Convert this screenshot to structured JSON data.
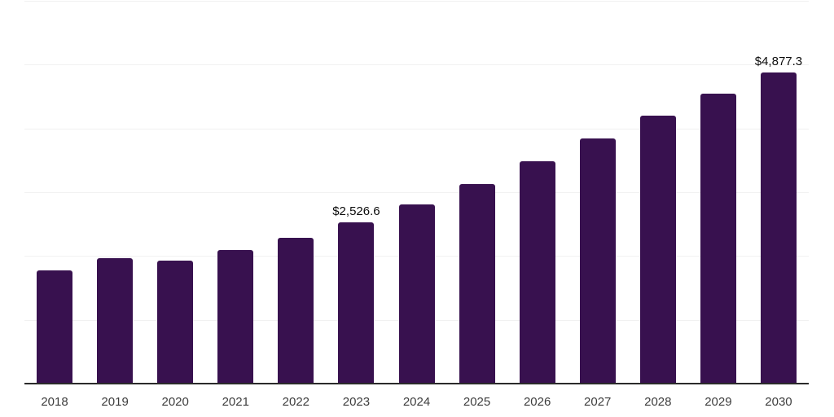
{
  "chart_data": {
    "type": "bar",
    "title": "",
    "xlabel": "",
    "ylabel": "",
    "categories": [
      "2018",
      "2019",
      "2020",
      "2021",
      "2022",
      "2023",
      "2024",
      "2025",
      "2026",
      "2027",
      "2028",
      "2029",
      "2030"
    ],
    "values": [
      1770,
      1960,
      1930,
      2090,
      2280,
      2526.6,
      2810,
      3130,
      3480,
      3845,
      4200,
      4540,
      4877.3
    ],
    "value_labels": {
      "5": "$2,526.6",
      "12": "$4,877.3"
    },
    "ylim": [
      0,
      6000
    ],
    "grid_interval": 1000,
    "grid": true,
    "legend": "none",
    "y_axis_tick_labels": "none",
    "colors": {
      "bar": "#38114f",
      "gridline": "#f1f1f1",
      "axis_line": "#2b2b2b",
      "tick_label": "#3d3d3d",
      "value_label": "#0d0d0d",
      "background": "#ffffff"
    }
  }
}
